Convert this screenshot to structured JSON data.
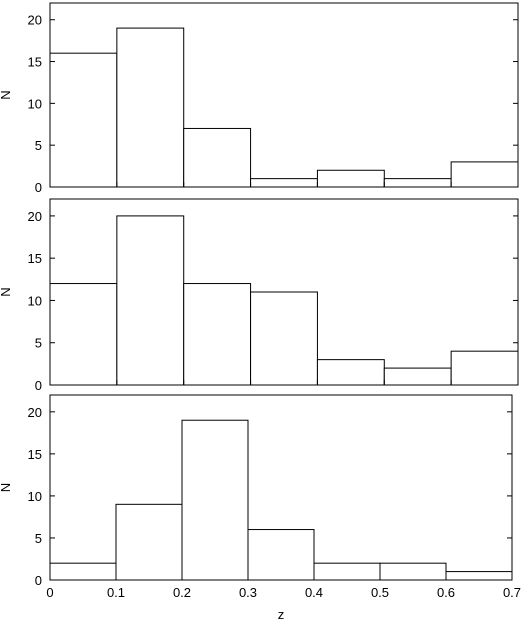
{
  "chart_data": [
    {
      "type": "bar",
      "subtype": "histogram",
      "bin_edges": [
        0,
        0.1,
        0.2,
        0.3,
        0.4,
        0.5,
        0.6,
        0.7
      ],
      "values": [
        16,
        19,
        7,
        1,
        2,
        1,
        3
      ],
      "xlim": [
        0,
        0.7
      ],
      "ylim": [
        0,
        22
      ],
      "yticks": [
        "0",
        "5",
        "10",
        "15",
        "20"
      ],
      "xticks": [],
      "ylabel": "N",
      "xlabel": "",
      "grid": false
    },
    {
      "type": "bar",
      "subtype": "histogram",
      "bin_edges": [
        0,
        0.1,
        0.2,
        0.3,
        0.4,
        0.5,
        0.6,
        0.7
      ],
      "values": [
        12,
        20,
        12,
        11,
        3,
        2,
        4
      ],
      "xlim": [
        0,
        0.7
      ],
      "ylim": [
        0,
        22
      ],
      "yticks": [
        "0",
        "5",
        "10",
        "15",
        "20"
      ],
      "xticks": [],
      "ylabel": "N",
      "xlabel": "",
      "grid": false
    },
    {
      "type": "bar",
      "subtype": "histogram",
      "bin_edges": [
        0,
        0.1,
        0.2,
        0.3,
        0.4,
        0.5,
        0.6,
        0.7
      ],
      "values": [
        2,
        9,
        19,
        6,
        2,
        2,
        1
      ],
      "xlim": [
        0,
        0.7
      ],
      "ylim": [
        0,
        22
      ],
      "yticks": [
        "0",
        "5",
        "10",
        "15",
        "20"
      ],
      "xticks": [
        "0",
        "0.1",
        "0.2",
        "0.3",
        "0.4",
        "0.5",
        "0.6",
        "0.7"
      ],
      "ylabel": "N",
      "xlabel": "z",
      "grid": false
    }
  ]
}
